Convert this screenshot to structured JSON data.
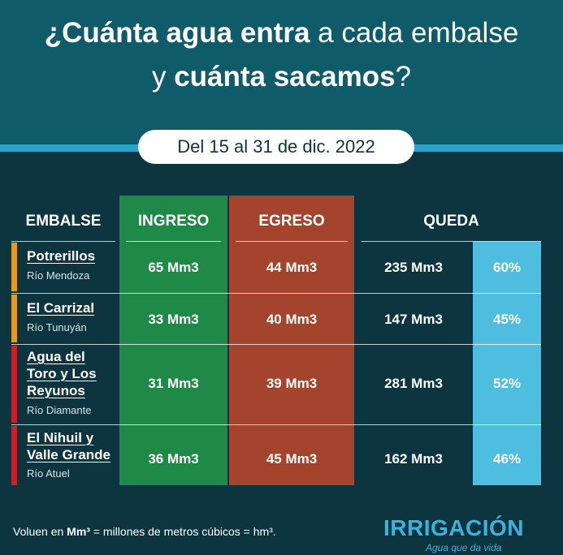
{
  "title": {
    "line1_bold": "¿Cuánta agua entra",
    "line1_light": " a cada embalse",
    "line2_light": "y ",
    "line2_bold": "cuánta sacamos",
    "line2_end": "?"
  },
  "period": "Del 15 al 31 de dic. 2022",
  "headers": {
    "embalse": "EMBALSE",
    "ingreso": "INGRESO",
    "egreso": "EGRESO",
    "queda": "QUEDA"
  },
  "colors": {
    "ingreso": "#1f8a47",
    "egreso": "#a4442c",
    "percent": "#4fbde0",
    "header": "#0f5b6a",
    "background": "#0d3540",
    "marker_orange": "#e39a1e",
    "marker_red": "#c8202a"
  },
  "rows": [
    {
      "name": "Potrerillos",
      "river": "Río Mendoza",
      "ingreso": "65 Mm3",
      "egreso": "44 Mm3",
      "queda": "235 Mm3",
      "percent": "60%",
      "marker_color": "#e39a1e"
    },
    {
      "name": "El Carrizal",
      "river": "Río Tunuyán",
      "ingreso": "33 Mm3",
      "egreso": "40 Mm3",
      "queda": "147 Mm3",
      "percent": "45%",
      "marker_color": "#e39a1e"
    },
    {
      "name": "Agua del\nToro y Los\nReyunos",
      "river": "Río Diamante",
      "ingreso": "31 Mm3",
      "egreso": "39 Mm3",
      "queda": "281 Mm3",
      "percent": "52%",
      "marker_color": "#c8202a"
    },
    {
      "name": "El Nihuil y\nValle Grande",
      "river": "Río Atuel",
      "ingreso": "36 Mm3",
      "egreso": "45 Mm3",
      "queda": "162 Mm3",
      "percent": "46%",
      "marker_color": "#c8202a"
    }
  ],
  "footer": {
    "note_prefix": "Voluen en ",
    "note_unit": "Mm³",
    "note_suffix": " = millones de metros cúbicos = hm³."
  },
  "logo": {
    "name": "IRRIGACIÓN",
    "tagline": "Agua que da vida"
  }
}
